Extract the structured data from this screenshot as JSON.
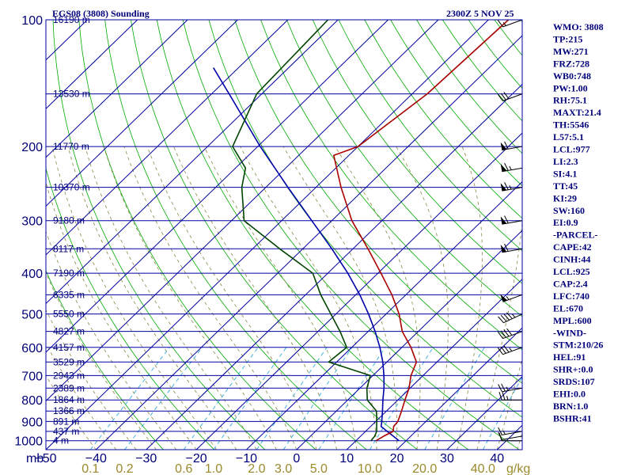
{
  "chart_data": {
    "type": "skew-t log-p",
    "title": "EGS08 (3808) Sounding",
    "valid_time": "2300Z  5 NOV 25",
    "pressure_axis": {
      "unit_label": "mb",
      "range": [
        1050,
        100
      ],
      "tick_labels": [
        100,
        200,
        300,
        400,
        500,
        600,
        700,
        800,
        900,
        1000
      ]
    },
    "temperature_axis": {
      "unit": "C",
      "range_at_1050": [
        -50,
        45
      ],
      "tick_labels": [
        "-50",
        "-40",
        "-30",
        "-20",
        "-10",
        "0",
        "10",
        "20",
        "30",
        "40"
      ]
    },
    "mixing_ratio_axis": {
      "unit_label": "g/kg",
      "labels": [
        "0.1",
        "0.2",
        "0.6",
        "1.0",
        "2.0",
        "3.0",
        "5.0",
        "10.0",
        "20.0",
        "40.0"
      ]
    },
    "height_labels": [
      {
        "p": 100,
        "label": "16190 m"
      },
      {
        "p": 150,
        "label": "13530 m"
      },
      {
        "p": 200,
        "label": "11770 m"
      },
      {
        "p": 250,
        "label": "10370 m"
      },
      {
        "p": 300,
        "label": "9180 m"
      },
      {
        "p": 350,
        "label": "8117 m"
      },
      {
        "p": 400,
        "label": "7190 m"
      },
      {
        "p": 450,
        "label": "6335 m"
      },
      {
        "p": 500,
        "label": "5550 m"
      },
      {
        "p": 550,
        "label": "4827 m"
      },
      {
        "p": 600,
        "label": "4157 m"
      },
      {
        "p": 650,
        "label": "3529 m"
      },
      {
        "p": 700,
        "label": "2943 m"
      },
      {
        "p": 750,
        "label": "2389 m"
      },
      {
        "p": 800,
        "label": "1864 m"
      },
      {
        "p": 850,
        "label": "1366 m"
      },
      {
        "p": 900,
        "label": "891 m"
      },
      {
        "p": 950,
        "label": "437 m"
      },
      {
        "p": 1000,
        "label": "4 m"
      }
    ],
    "temperature_profile": [
      [
        1000,
        14.0
      ],
      [
        975,
        14.6
      ],
      [
        950,
        15.5
      ],
      [
        925,
        14.6
      ],
      [
        900,
        14.4
      ],
      [
        850,
        13.0
      ],
      [
        800,
        11.4
      ],
      [
        750,
        9.8
      ],
      [
        700,
        7.6
      ],
      [
        650,
        5.9
      ],
      [
        600,
        1.8
      ],
      [
        550,
        -3.2
      ],
      [
        500,
        -7.4
      ],
      [
        450,
        -12.8
      ],
      [
        400,
        -19.4
      ],
      [
        350,
        -27.0
      ],
      [
        300,
        -36.0
      ],
      [
        250,
        -45.0
      ],
      [
        210,
        -53.0
      ],
      [
        200,
        -50.0
      ],
      [
        150,
        -47.0
      ],
      [
        100,
        -46.0
      ]
    ],
    "dewpoint_profile": [
      [
        1000,
        13.0
      ],
      [
        975,
        12.8
      ],
      [
        950,
        12.2
      ],
      [
        925,
        11.2
      ],
      [
        900,
        10.2
      ],
      [
        850,
        8.0
      ],
      [
        800,
        3.9
      ],
      [
        750,
        1.4
      ],
      [
        700,
        -0.5
      ],
      [
        650,
        -11.6
      ],
      [
        600,
        -11.0
      ],
      [
        550,
        -15.6
      ],
      [
        500,
        -21.0
      ],
      [
        450,
        -27.0
      ],
      [
        400,
        -33.0
      ],
      [
        350,
        -44.6
      ],
      [
        300,
        -57.5
      ],
      [
        250,
        -64.8
      ],
      [
        225,
        -68.0
      ],
      [
        200,
        -75.0
      ],
      [
        150,
        -81.0
      ],
      [
        100,
        -82.0
      ]
    ],
    "parcel_profile": [
      [
        1000,
        18.6
      ],
      [
        975,
        16.5
      ],
      [
        950,
        14.3
      ],
      [
        925,
        12.1
      ],
      [
        900,
        11.2
      ],
      [
        850,
        9.2
      ],
      [
        800,
        7.0
      ],
      [
        750,
        4.8
      ],
      [
        700,
        2.2
      ],
      [
        650,
        -0.8
      ],
      [
        600,
        -4.4
      ],
      [
        550,
        -8.6
      ],
      [
        500,
        -13.5
      ],
      [
        450,
        -19.2
      ],
      [
        400,
        -26.0
      ],
      [
        350,
        -34.2
      ],
      [
        300,
        -44.0
      ],
      [
        250,
        -55.6
      ],
      [
        200,
        -69.5
      ],
      [
        150,
        -86.5
      ],
      [
        130,
        -95.0
      ]
    ],
    "wind_barbs": [
      {
        "p": 1000,
        "dir": 270,
        "spd_kt": 10
      },
      {
        "p": 975,
        "dir": 260,
        "spd_kt": 10
      },
      {
        "p": 950,
        "dir": 260,
        "spd_kt": 15
      },
      {
        "p": 800,
        "dir": 270,
        "spd_kt": 25
      },
      {
        "p": 750,
        "dir": 260,
        "spd_kt": 25
      },
      {
        "p": 600,
        "dir": 250,
        "spd_kt": 35
      },
      {
        "p": 550,
        "dir": 250,
        "spd_kt": 40
      },
      {
        "p": 500,
        "dir": 245,
        "spd_kt": 45
      },
      {
        "p": 450,
        "dir": 250,
        "spd_kt": 55
      },
      {
        "p": 350,
        "dir": 260,
        "spd_kt": 60
      },
      {
        "p": 300,
        "dir": 260,
        "spd_kt": 60
      },
      {
        "p": 250,
        "dir": 260,
        "spd_kt": 65
      },
      {
        "p": 225,
        "dir": 260,
        "spd_kt": 65
      },
      {
        "p": 200,
        "dir": 260,
        "spd_kt": 60
      },
      {
        "p": 150,
        "dir": 250,
        "spd_kt": 30
      },
      {
        "p": 100,
        "dir": 250,
        "spd_kt": 15
      }
    ]
  },
  "indices": [
    "WMO: 3808",
    "TP:215",
    "MW:271",
    "FRZ:728",
    "WB0:748",
    "PW:1.00",
    "RH:75.1",
    "MAXT:21.4",
    "TH:5546",
    "L57:5.1",
    "LCL:977",
    "LI:2.3",
    "SI:4.1",
    "TT:45",
    "KI:29",
    "SW:160",
    "EI:0.9",
    "-PARCEL-",
    "CAPE:42",
    "CINH:44",
    "LCL:925",
    "CAP:2.4",
    "LFC:740",
    "EL:670",
    "MPL:600",
    "-WIND-",
    "STM:210/26",
    "HEL:91",
    "SHR+:0.0",
    "SRDS:107",
    "EHI:0.0",
    "BRN:1.0",
    "BSHR:41"
  ],
  "colors": {
    "isobar": "#0000a0",
    "isotherm": "#0000a0",
    "dry_adiabat": "#00aa00",
    "moist_adiabat": "#888844",
    "mixing_ratio": "#33aadd",
    "temperature": "#aa0000",
    "dewpoint": "#004400",
    "parcel": "#0000aa",
    "text": "#00007a",
    "mixing_label": "#9a8a2a",
    "barb": "#000000"
  }
}
